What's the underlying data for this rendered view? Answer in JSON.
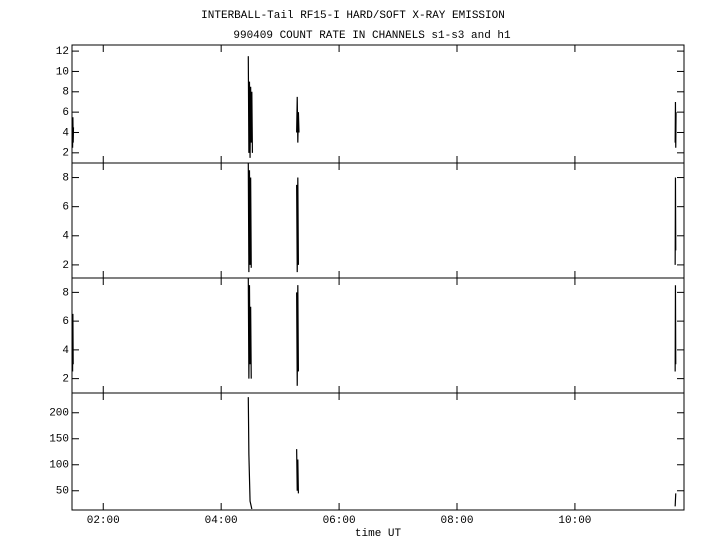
{
  "chart_data": {
    "type": "line",
    "title": "INTERBALL-Tail RF15-I HARD/SOFT X-RAY EMISSION",
    "subtitle": "990409  COUNT RATE IN CHANNELS s1-s3 and h1",
    "xlabel": "time UT",
    "color": "#000000",
    "xlim": [
      1.47,
      11.85
    ],
    "xticks": [
      {
        "value": 2,
        "label": "02:00"
      },
      {
        "value": 4,
        "label": "04:00"
      },
      {
        "value": 6,
        "label": "06:00"
      },
      {
        "value": 8,
        "label": "08:00"
      },
      {
        "value": 10,
        "label": "10:00"
      }
    ],
    "panels": [
      {
        "ylim": [
          1,
          12.6
        ],
        "yticks": [
          2,
          4,
          6,
          8,
          10,
          12
        ],
        "x": [
          1.48,
          1.485,
          1.49,
          1.495,
          3.0,
          4.46,
          4.47,
          4.48,
          4.49,
          4.5,
          4.51,
          4.52,
          4.53,
          5.0,
          5.28,
          5.29,
          5.3,
          5.31,
          5.32,
          8.0,
          11.7,
          11.705,
          11.71,
          11.715
        ],
        "values": [
          2.5,
          5.5,
          3,
          4.5,
          null,
          11.5,
          2,
          9,
          1.5,
          8.5,
          3,
          8,
          2,
          null,
          4,
          7.5,
          3,
          6,
          4,
          null,
          3,
          7,
          2.5,
          6
        ]
      },
      {
        "ylim": [
          1.1,
          9
        ],
        "yticks": [
          2,
          4,
          6,
          8
        ],
        "x": [
          4.46,
          4.47,
          4.48,
          4.49,
          4.5,
          4.51,
          5.0,
          5.28,
          5.29,
          5.3,
          5.31,
          8.0,
          11.7,
          11.705,
          11.71
        ],
        "values": [
          9,
          1.5,
          8.5,
          2,
          8,
          1.8,
          null,
          7.5,
          1.5,
          8,
          2,
          null,
          2,
          8,
          3
        ]
      },
      {
        "ylim": [
          1,
          9
        ],
        "yticks": [
          2,
          4,
          6,
          8
        ],
        "x": [
          1.48,
          1.485,
          1.49,
          3.0,
          4.46,
          4.47,
          4.48,
          4.49,
          4.5,
          4.51,
          5.0,
          5.28,
          5.29,
          5.3,
          5.31,
          8.0,
          11.7,
          11.705,
          11.71
        ],
        "values": [
          2.5,
          6.5,
          3,
          null,
          9,
          2,
          8.5,
          3,
          7,
          2,
          null,
          8,
          1.5,
          8.5,
          2.5,
          null,
          2.5,
          8.5,
          3
        ]
      },
      {
        "ylim": [
          13,
          238
        ],
        "yticks": [
          50,
          100,
          150,
          200
        ],
        "x": [
          4.46,
          4.47,
          4.49,
          4.52,
          5.0,
          5.28,
          5.29,
          5.3,
          5.31,
          8.0,
          11.7,
          11.71
        ],
        "values": [
          230,
          120,
          30,
          15,
          null,
          130,
          50,
          110,
          45,
          null,
          20,
          45
        ]
      }
    ]
  }
}
